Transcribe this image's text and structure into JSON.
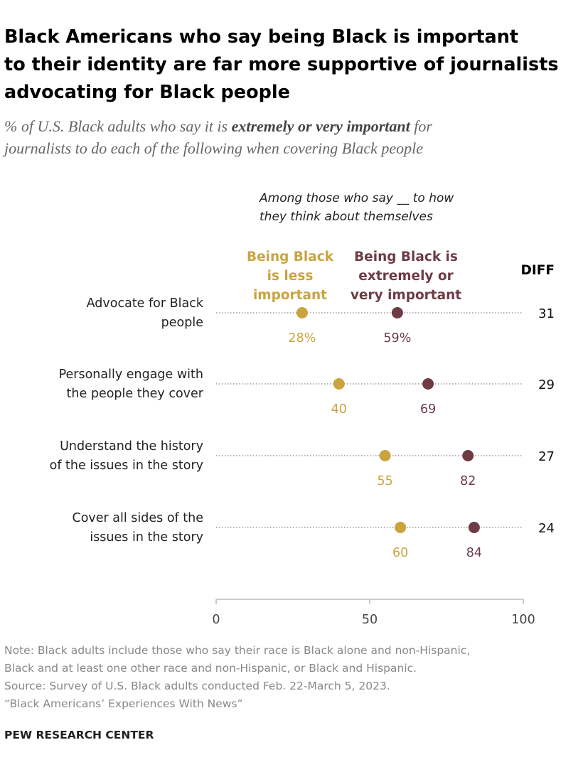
{
  "colors": {
    "less": "#C9A43F",
    "more": "#6E3B45",
    "axis": "#BBBBBB",
    "dots": "#999999"
  },
  "chart_data": {
    "type": "dot-plot",
    "title": [
      "Black Americans who say being Black is important",
      "to their identity are far more supportive of journalists",
      "advocating for Black people"
    ],
    "subtitle": {
      "pre": "% of U.S. Black adults who say it is ",
      "em": "extremely or very important",
      "post": " for",
      "line2": "journalists to do each of the following when covering Black people"
    },
    "intro": [
      "Among those who say __ to how",
      "they think about themselves"
    ],
    "series": [
      {
        "name": [
          "Being Black",
          "is less",
          "important"
        ],
        "values": [
          28,
          40,
          55,
          60
        ],
        "labels": [
          "28%",
          "40",
          "55",
          "60"
        ]
      },
      {
        "name": [
          "Being Black is",
          "extremely or",
          "very important"
        ],
        "values": [
          59,
          69,
          82,
          84
        ],
        "labels": [
          "59%",
          "69",
          "82",
          "84"
        ]
      }
    ],
    "categories": [
      [
        "Advocate for Black",
        "people"
      ],
      [
        "Personally engage with",
        "the people they cover"
      ],
      [
        "Understand the history",
        "of the issues in the story"
      ],
      [
        "Cover all sides of the",
        "issues in the story"
      ]
    ],
    "diff_header": "DIFF",
    "diff": [
      "31",
      "29",
      "27",
      "24"
    ],
    "xlim": [
      0,
      100
    ],
    "xticks": [
      "0",
      "50",
      "100"
    ]
  },
  "footer": {
    "note": [
      "Note: Black adults include those who say their race is Black alone and non-Hispanic,",
      "Black and at least one other race and non-Hispanic, or Black and Hispanic."
    ],
    "source": "Source: Survey of U.S. Black adults conducted Feb. 22-March 5, 2023.",
    "report": "“Black Americans’ Experiences With News”",
    "brand": "PEW RESEARCH CENTER"
  }
}
